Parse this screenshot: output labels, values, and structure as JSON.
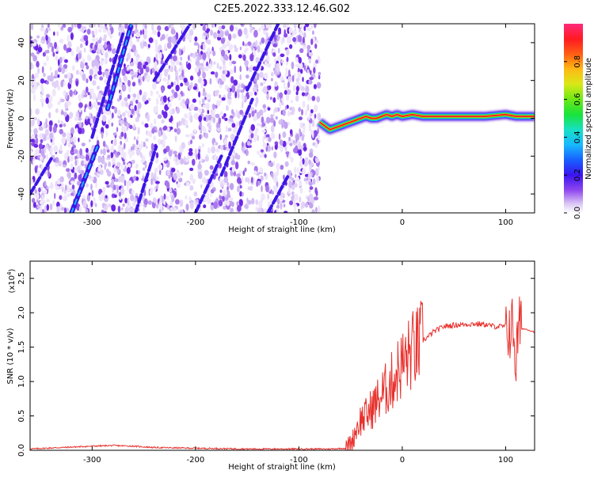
{
  "title": "C2E5.2022.333.12.46.G02",
  "chart_data": [
    {
      "type": "heatmap",
      "xlabel": "Height of straight line (km)",
      "ylabel": "Frequency (Hz)",
      "xlim": [
        -360,
        128
      ],
      "ylim": [
        -50,
        50
      ],
      "xticks": [
        -300,
        -200,
        -100,
        0,
        100
      ],
      "yticks": [
        -40,
        -20,
        0,
        20,
        40
      ],
      "noise_region_x": [
        -360,
        -80
      ],
      "noise_streaks": [
        {
          "x1": -360,
          "x2": -338,
          "f1": -40,
          "f2": -20
        },
        {
          "x1": -320,
          "x2": -295,
          "f1": -50,
          "f2": -15
        },
        {
          "x1": -300,
          "x2": -270,
          "f1": -10,
          "f2": 45
        },
        {
          "x1": -285,
          "x2": -262,
          "f1": 5,
          "f2": 50
        },
        {
          "x1": -258,
          "x2": -238,
          "f1": -50,
          "f2": -15
        },
        {
          "x1": -240,
          "x2": -205,
          "f1": 20,
          "f2": 50
        },
        {
          "x1": -200,
          "x2": -175,
          "f1": -50,
          "f2": -20
        },
        {
          "x1": -175,
          "x2": -145,
          "f1": -30,
          "f2": 10
        },
        {
          "x1": -150,
          "x2": -120,
          "f1": 15,
          "f2": 50
        },
        {
          "x1": -130,
          "x2": -110,
          "f1": -50,
          "f2": -30
        }
      ],
      "signal_track": {
        "x": [
          -80,
          -75,
          -70,
          -65,
          -60,
          -55,
          -50,
          -45,
          -40,
          -35,
          -30,
          -25,
          -20,
          -15,
          -10,
          -5,
          0,
          10,
          20,
          40,
          60,
          80,
          100,
          110,
          128
        ],
        "f": [
          -2,
          -4,
          -6,
          -5,
          -4,
          -3,
          -2,
          -1,
          0,
          1,
          0,
          0,
          1,
          2,
          1,
          2,
          1,
          2,
          1,
          1,
          1,
          1,
          2,
          1,
          1
        ]
      },
      "colorbar": {
        "label": "Normalized spectral amplitude",
        "ticks": [
          "0.0",
          "0.2",
          "0.4",
          "0.6",
          "0.8"
        ],
        "range": [
          0,
          1
        ]
      }
    },
    {
      "type": "line",
      "xlabel": "Height of straight line (km)",
      "ylabel": "SNR (10 * v/v)",
      "scale_label": "(x10",
      "scale_exponent": "4",
      "scale_close": ")",
      "xlim": [
        -360,
        128
      ],
      "ylim": [
        0,
        2.75
      ],
      "xticks": [
        -300,
        -200,
        -100,
        0,
        100
      ],
      "yticks": [
        0.0,
        0.5,
        1.0,
        1.5,
        2.0,
        2.5
      ],
      "series": [
        {
          "name": "SNR",
          "color": "#e8312d",
          "x": [
            -360,
            -330,
            -300,
            -280,
            -260,
            -240,
            -200,
            -150,
            -100,
            -70,
            -55,
            -48,
            -45,
            -40,
            -35,
            -30,
            -25,
            -20,
            -15,
            -10,
            -5,
            0,
            5,
            10,
            15,
            20,
            25,
            30,
            40,
            50,
            60,
            70,
            80,
            90,
            100,
            105,
            108,
            110,
            112,
            115,
            120,
            128
          ],
          "y": [
            0.02,
            0.04,
            0.06,
            0.07,
            0.06,
            0.04,
            0.03,
            0.02,
            0.02,
            0.02,
            0.03,
            0.15,
            0.3,
            0.45,
            0.5,
            0.6,
            0.7,
            0.8,
            0.9,
            1.0,
            1.15,
            1.25,
            1.35,
            1.45,
            1.5,
            1.6,
            1.65,
            1.72,
            1.8,
            1.82,
            1.83,
            1.84,
            1.83,
            1.8,
            1.8,
            1.78,
            1.75,
            1.2,
            1.75,
            1.77,
            1.76,
            1.72
          ]
        }
      ]
    }
  ]
}
